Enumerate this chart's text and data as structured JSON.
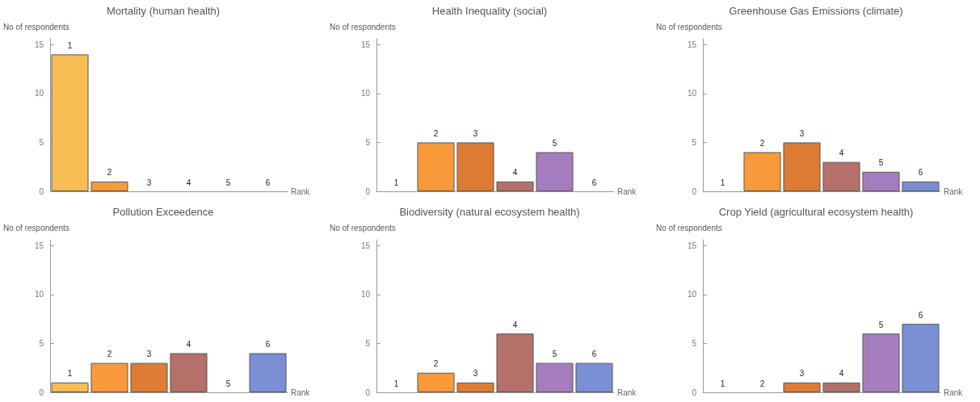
{
  "chart_data": [
    {
      "type": "bar",
      "title": "Mortality (human health)",
      "xlabel": "Rank",
      "ylabel": "No of respondents",
      "categories": [
        "1",
        "2",
        "3",
        "4",
        "5",
        "6"
      ],
      "values": [
        14,
        1,
        0,
        0,
        0,
        0
      ],
      "colors": [
        "#f9bd55",
        "#f99a3a",
        "#de7b35",
        "#b5706a",
        "#a57dbf",
        "#7b8fd4"
      ],
      "ylim": [
        0,
        15.6
      ],
      "yticks": [
        0,
        5,
        10,
        15
      ],
      "grid": false
    },
    {
      "type": "bar",
      "title": "Health Inequality (social)",
      "xlabel": "Rank",
      "ylabel": "No of respondents",
      "categories": [
        "1",
        "2",
        "3",
        "4",
        "5",
        "6"
      ],
      "values": [
        0,
        5,
        5,
        1,
        4,
        0
      ],
      "colors": [
        "#f9bd55",
        "#f99a3a",
        "#de7b35",
        "#b5706a",
        "#a57dbf",
        "#7b8fd4"
      ],
      "ylim": [
        0,
        15.6
      ],
      "yticks": [
        0,
        5,
        10,
        15
      ],
      "grid": false
    },
    {
      "type": "bar",
      "title": "Greenhouse Gas Emissions (climate)",
      "xlabel": "Rank",
      "ylabel": "No of respondents",
      "categories": [
        "1",
        "2",
        "3",
        "4",
        "5",
        "6"
      ],
      "values": [
        0,
        4,
        5,
        3,
        2,
        1
      ],
      "colors": [
        "#f9bd55",
        "#f99a3a",
        "#de7b35",
        "#b5706a",
        "#a57dbf",
        "#7b8fd4"
      ],
      "ylim": [
        0,
        15.6
      ],
      "yticks": [
        0,
        5,
        10,
        15
      ],
      "grid": false
    },
    {
      "type": "bar",
      "title": "Pollution Exceedence",
      "xlabel": "Rank",
      "ylabel": "No of respondents",
      "categories": [
        "1",
        "2",
        "3",
        "4",
        "5",
        "6"
      ],
      "values": [
        1,
        3,
        3,
        4,
        0,
        4
      ],
      "colors": [
        "#f9bd55",
        "#f99a3a",
        "#de7b35",
        "#b5706a",
        "#a57dbf",
        "#7b8fd4"
      ],
      "ylim": [
        0,
        15.6
      ],
      "yticks": [
        0,
        5,
        10,
        15
      ],
      "grid": false
    },
    {
      "type": "bar",
      "title": "Biodiversity (natural ecosystem health)",
      "xlabel": "Rank",
      "ylabel": "No of respondents",
      "categories": [
        "1",
        "2",
        "3",
        "4",
        "5",
        "6"
      ],
      "values": [
        0,
        2,
        1,
        6,
        3,
        3
      ],
      "colors": [
        "#f9bd55",
        "#f99a3a",
        "#de7b35",
        "#b5706a",
        "#a57dbf",
        "#7b8fd4"
      ],
      "ylim": [
        0,
        15.6
      ],
      "yticks": [
        0,
        5,
        10,
        15
      ],
      "grid": false
    },
    {
      "type": "bar",
      "title": "Crop Yield (agricultural ecosystem health)",
      "xlabel": "Rank",
      "ylabel": "No of respondents",
      "categories": [
        "1",
        "2",
        "3",
        "4",
        "5",
        "6"
      ],
      "values": [
        0,
        0,
        1,
        1,
        6,
        7
      ],
      "colors": [
        "#f9bd55",
        "#f99a3a",
        "#de7b35",
        "#b5706a",
        "#a57dbf",
        "#7b8fd4"
      ],
      "ylim": [
        0,
        15.6
      ],
      "yticks": [
        0,
        5,
        10,
        15
      ],
      "grid": false
    }
  ]
}
